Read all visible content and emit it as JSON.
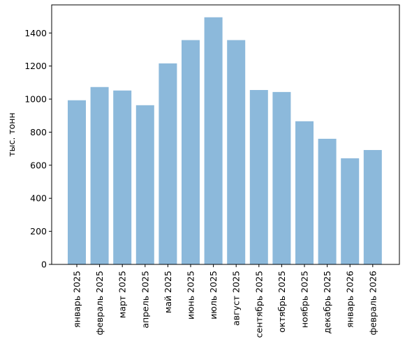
{
  "chart_data": {
    "type": "bar",
    "title": "",
    "xlabel": "",
    "ylabel": "тыс. тонн",
    "ylim": [
      0,
      1570
    ],
    "yticks": [
      0,
      200,
      400,
      600,
      800,
      1000,
      1200,
      1400
    ],
    "grid": false,
    "bar_color": "#8cb9db",
    "categories": [
      "январь 2025",
      "февраль 2025",
      "март 2025",
      "апрель 2025",
      "май 2025",
      "июнь 2025",
      "июль 2025",
      "август 2025",
      "сентябрь 2025",
      "октябрь 2025",
      "ноябрь 2025",
      "декабрь 2025",
      "январь 2026",
      "февраль 2026"
    ],
    "values": [
      993,
      1073,
      1052,
      963,
      1216,
      1357,
      1495,
      1357,
      1055,
      1043,
      866,
      760,
      642,
      692
    ]
  }
}
